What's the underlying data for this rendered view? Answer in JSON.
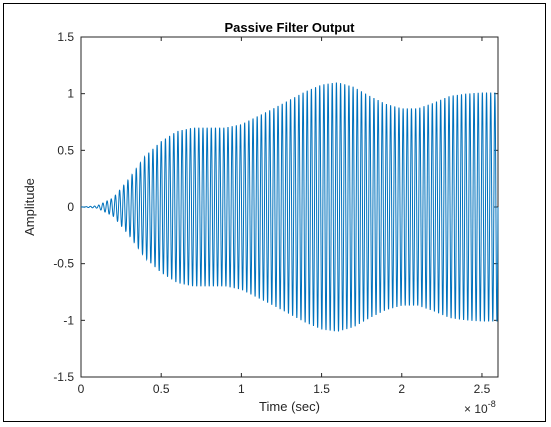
{
  "chart_data": {
    "type": "line",
    "title": "Passive Filter Output",
    "xlabel": "Time (sec)",
    "ylabel": "Amplitude",
    "x_exponent_label": "× 10",
    "x_exponent_power": "-8",
    "xlim": [
      0,
      2.6e-08
    ],
    "ylim": [
      -1.5,
      1.5
    ],
    "x_ticks": [
      0,
      5e-09,
      1e-08,
      1.5e-08,
      2e-08,
      2.5e-08
    ],
    "x_tick_labels": [
      "0",
      "0.5",
      "1",
      "1.5",
      "2",
      "2.5"
    ],
    "y_ticks": [
      -1.5,
      -1,
      -0.5,
      0,
      0.5,
      1,
      1.5
    ],
    "y_tick_labels": [
      "-1.5",
      "-1",
      "-0.5",
      "0",
      "0.5",
      "1",
      "1.5"
    ],
    "grid": false,
    "series": [
      {
        "color": "#0072BD",
        "oscillation_cycles": 100,
        "x": [
          0,
          1e-09,
          2e-09,
          3e-09,
          4e-09,
          5e-09,
          6e-09,
          7e-09,
          8e-09,
          9e-09,
          1e-08,
          1.2e-08,
          1.4e-08,
          1.5e-08,
          1.6e-08,
          1.7e-08,
          1.8e-08,
          1.9e-08,
          2e-08,
          2.1e-08,
          2.2e-08,
          2.3e-08,
          2.4e-08,
          2.5e-08,
          2.6e-08
        ],
        "envelope": [
          0,
          0.01,
          0.08,
          0.25,
          0.45,
          0.58,
          0.67,
          0.7,
          0.7,
          0.7,
          0.73,
          0.87,
          1.02,
          1.08,
          1.1,
          1.06,
          0.98,
          0.91,
          0.87,
          0.87,
          0.92,
          0.98,
          1.0,
          1.01,
          1.01
        ]
      }
    ]
  }
}
